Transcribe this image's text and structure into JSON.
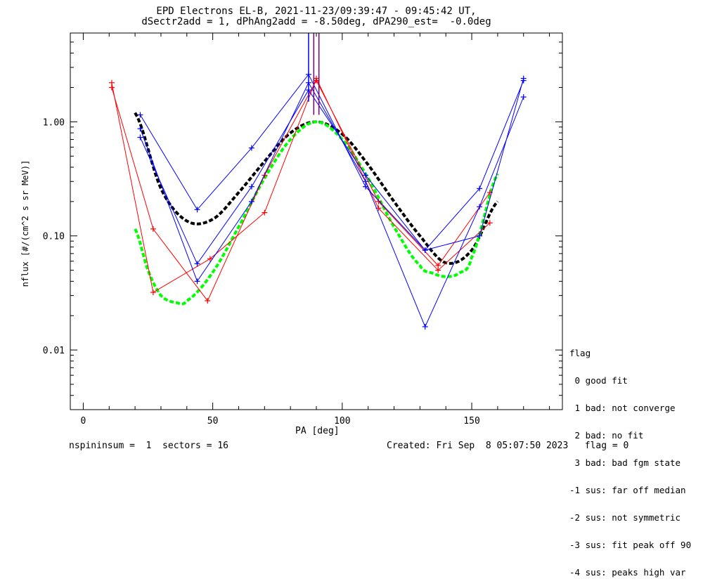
{
  "title_line1": "EPD Electrons EL-B, 2021-11-23/09:39:47 - 09:45:42 UT,",
  "title_line2": "dSectr2add = 1, dPhAng2add = -8.50deg, dPA290_est=  -0.0deg",
  "footer_left": "nspininsum =  1  sectors = 16",
  "footer_right": "Created: Fri Sep  8 05:07:50 2023   flag = 0",
  "legend": {
    "title": "flag",
    "items": [
      " 0 good fit",
      " 1 bad: not converge",
      " 2 bad: no fit",
      " 3 bad: bad fgm state",
      "-1 sus: far off median",
      "-2 sus: not symmetric",
      "-3 sus: fit peak off 90",
      "-4 sus: peaks high var"
    ]
  },
  "colors": {
    "red": "#ff0000",
    "blue": "#0000ff",
    "black": "#000000",
    "green": "#00ff00",
    "purple": "#7f007f"
  },
  "chart_data": {
    "type": "line",
    "xlabel": "PA [deg]",
    "ylabel": "nflux [#/(cm^2 s sr MeV)]",
    "xlim": [
      -5,
      185
    ],
    "ylim": [
      0.003,
      6
    ],
    "yscale": "log",
    "xticks": [
      0,
      50,
      100,
      150
    ],
    "xtick_labels": [
      "0",
      "50",
      "100",
      "150"
    ],
    "yticks": [
      0.01,
      0.1,
      1.0
    ],
    "ytick_labels": [
      "0.01",
      "0.10",
      "1.00"
    ],
    "series": [
      {
        "color": "red",
        "marker": "+",
        "x": [
          11,
          27,
          48,
          70,
          90,
          114,
          137,
          157
        ],
        "y": [
          2.0,
          0.115,
          0.027,
          0.34,
          2.3,
          0.2,
          0.055,
          0.24
        ]
      },
      {
        "color": "red",
        "marker": "+",
        "x": [
          11,
          27,
          49,
          70,
          90,
          114,
          137,
          157
        ],
        "y": [
          2.2,
          0.032,
          0.063,
          0.16,
          2.4,
          0.175,
          0.05,
          0.13
        ]
      },
      {
        "color": "blue",
        "marker": "+",
        "x": [
          22,
          44,
          65,
          87,
          109,
          132,
          153,
          170
        ],
        "y": [
          1.15,
          0.17,
          0.59,
          2.6,
          0.27,
          0.075,
          0.26,
          2.3
        ]
      },
      {
        "color": "blue",
        "marker": "+",
        "x": [
          22,
          44,
          65,
          87,
          109,
          132,
          153,
          170
        ],
        "y": [
          0.87,
          0.04,
          0.2,
          2.2,
          0.3,
          0.016,
          0.18,
          1.65
        ]
      },
      {
        "color": "blue",
        "marker": "+",
        "x": [
          22,
          44,
          65,
          87,
          109,
          132,
          153,
          170
        ],
        "y": [
          0.73,
          0.057,
          0.27,
          1.9,
          0.34,
          0.075,
          0.1,
          2.4
        ]
      },
      {
        "color": "black",
        "style": "dashed-fit",
        "x": [
          20,
          30,
          40,
          50,
          60,
          70,
          80,
          90,
          100,
          110,
          120,
          130,
          140,
          150,
          160
        ],
        "y": [
          1.2,
          0.26,
          0.135,
          0.14,
          0.24,
          0.45,
          0.8,
          1.0,
          0.78,
          0.42,
          0.2,
          0.1,
          0.058,
          0.075,
          0.2
        ]
      },
      {
        "color": "green",
        "style": "dashed-fit",
        "x": [
          20,
          25,
          30,
          36,
          40,
          50,
          60,
          70,
          80,
          90,
          100,
          110,
          120,
          130,
          135,
          140,
          145,
          150,
          160
        ],
        "y": [
          0.115,
          0.05,
          0.03,
          0.026,
          0.027,
          0.048,
          0.12,
          0.32,
          0.7,
          1.0,
          0.7,
          0.32,
          0.12,
          0.055,
          0.047,
          0.044,
          0.047,
          0.065,
          0.35
        ]
      },
      {
        "color": "purple",
        "style": "vertical-line",
        "x": 89,
        "y": [
          1.15,
          6
        ]
      },
      {
        "color": "purple",
        "style": "vertical-line",
        "x": 91,
        "y": [
          1.15,
          6
        ]
      },
      {
        "color": "blue",
        "style": "vertical-line",
        "x": 87,
        "y": [
          1.5,
          6
        ]
      }
    ]
  }
}
